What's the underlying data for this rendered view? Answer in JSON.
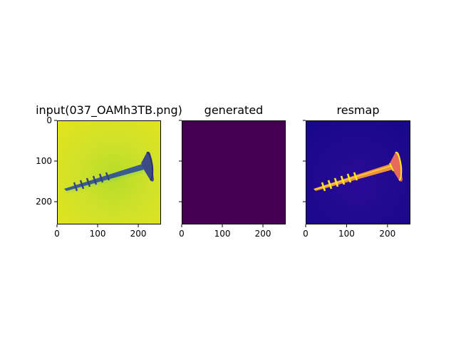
{
  "chart_data": [
    {
      "type": "heatmap",
      "title": "input(037_OAMh3TB.png)",
      "colormap": "viridis",
      "content": "screw on light background",
      "x_ticks": [
        0,
        100,
        200
      ],
      "y_ticks": [
        0,
        100,
        200
      ],
      "xlim": [
        0,
        256
      ],
      "ylim": [
        256,
        0
      ]
    },
    {
      "type": "heatmap",
      "title": "generated",
      "colormap": "viridis",
      "content": "uniform dark purple field",
      "x_ticks": [
        0,
        100,
        200
      ],
      "y_ticks": [],
      "xlim": [
        0,
        256
      ],
      "ylim": [
        256,
        0
      ]
    },
    {
      "type": "heatmap",
      "title": "resmap",
      "colormap": "plasma",
      "content": "bright screw on dark blue background",
      "x_ticks": [
        0,
        100,
        200
      ],
      "y_ticks": [],
      "xlim": [
        0,
        256
      ],
      "ylim": [
        256,
        0
      ]
    }
  ],
  "colors": {
    "viridis_bg": "#d4e12a",
    "viridis_dark": "#440154",
    "viridis_mid": "#2f6d8e",
    "viridis_edge": "#8fd34a",
    "plasma_bg": "#1f0a8c",
    "plasma_screw": "#f89540",
    "plasma_highlight": "#fde724",
    "plasma_mid": "#cc4778"
  }
}
